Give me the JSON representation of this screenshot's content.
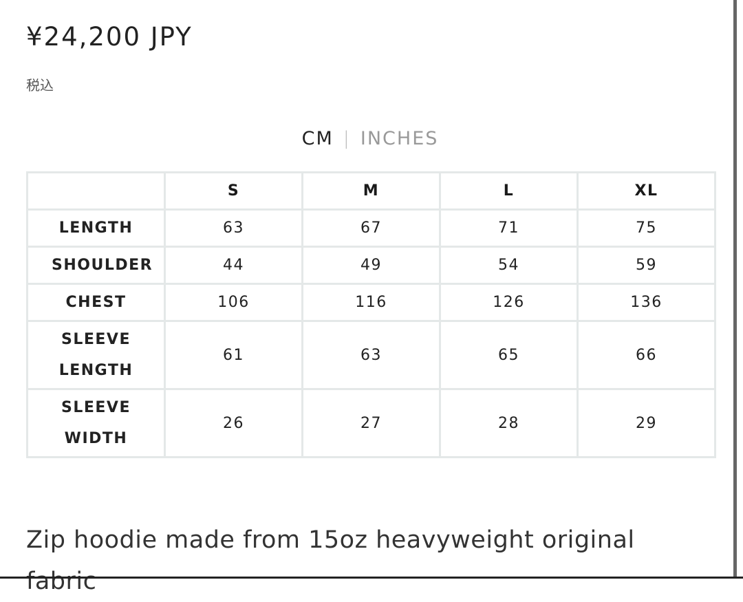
{
  "product": {
    "price": "¥24,200 JPY",
    "tax_note": "税込"
  },
  "unit_toggle": {
    "active": "CM",
    "inactive": "INCHES"
  },
  "size_table": {
    "sizes": [
      "S",
      "M",
      "L",
      "XL"
    ],
    "rows": [
      {
        "label": "LENGTH",
        "values": [
          63,
          67,
          71,
          75
        ]
      },
      {
        "label": "SHOULDER",
        "values": [
          44,
          49,
          54,
          59
        ]
      },
      {
        "label": "CHEST",
        "values": [
          106,
          116,
          126,
          136
        ]
      },
      {
        "label": "SLEEVE LENGTH",
        "values": [
          61,
          63,
          65,
          66
        ]
      },
      {
        "label": "SLEEVE WIDTH",
        "values": [
          26,
          27,
          28,
          29
        ]
      }
    ]
  },
  "description": "Zip hoodie made from 15oz heavyweight original fabric"
}
